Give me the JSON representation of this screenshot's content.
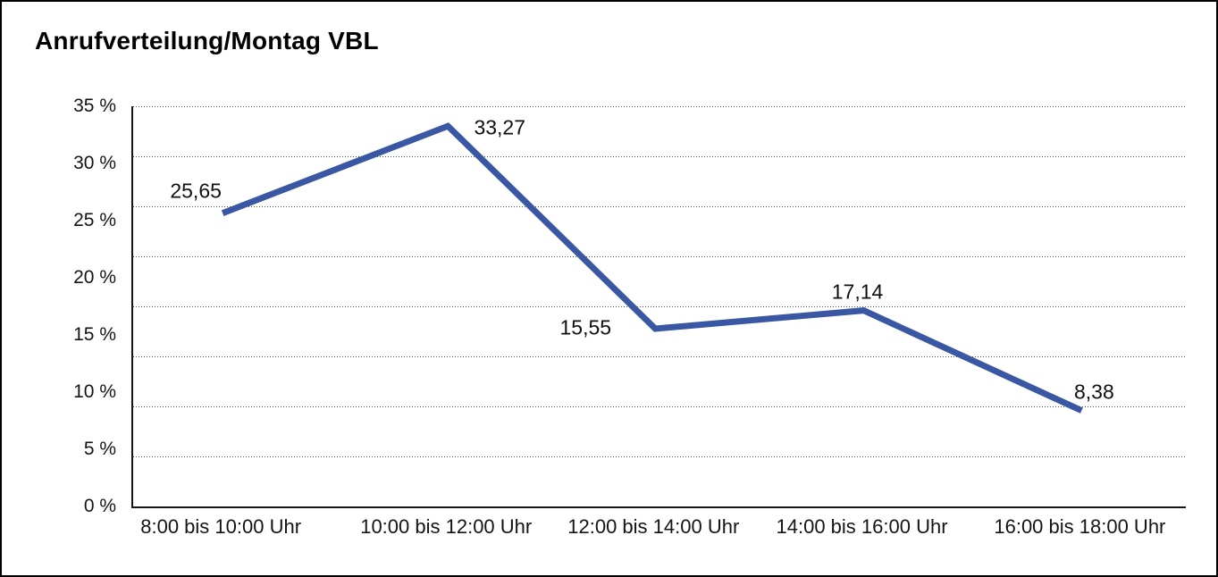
{
  "title": "Anrufverteilung/Montag VBL",
  "chart_data": {
    "type": "line",
    "title": "Anrufverteilung/Montag VBL",
    "categories": [
      "8:00 bis 10:00 Uhr",
      "10:00 bis 12:00 Uhr",
      "12:00 bis 14:00 Uhr",
      "14:00 bis 16:00 Uhr",
      "16:00 bis 18:00 Uhr"
    ],
    "values": [
      25.65,
      33.27,
      15.55,
      17.14,
      8.38
    ],
    "point_labels": [
      "25,65",
      "33,27",
      "15,55",
      "17,14",
      "8,38"
    ],
    "y_tick_labels": [
      "0 %",
      "5 %",
      "10 %",
      "15 %",
      "20 %",
      "25 %",
      "30 %",
      "35 %"
    ],
    "ylim": [
      0,
      35
    ],
    "xlabel": "",
    "ylabel": "",
    "legend": "none",
    "grid": "horizontal-dotted",
    "line_color": "#3A57A4",
    "grid_color": "#4c4c4c",
    "axis_color": "#161616"
  }
}
